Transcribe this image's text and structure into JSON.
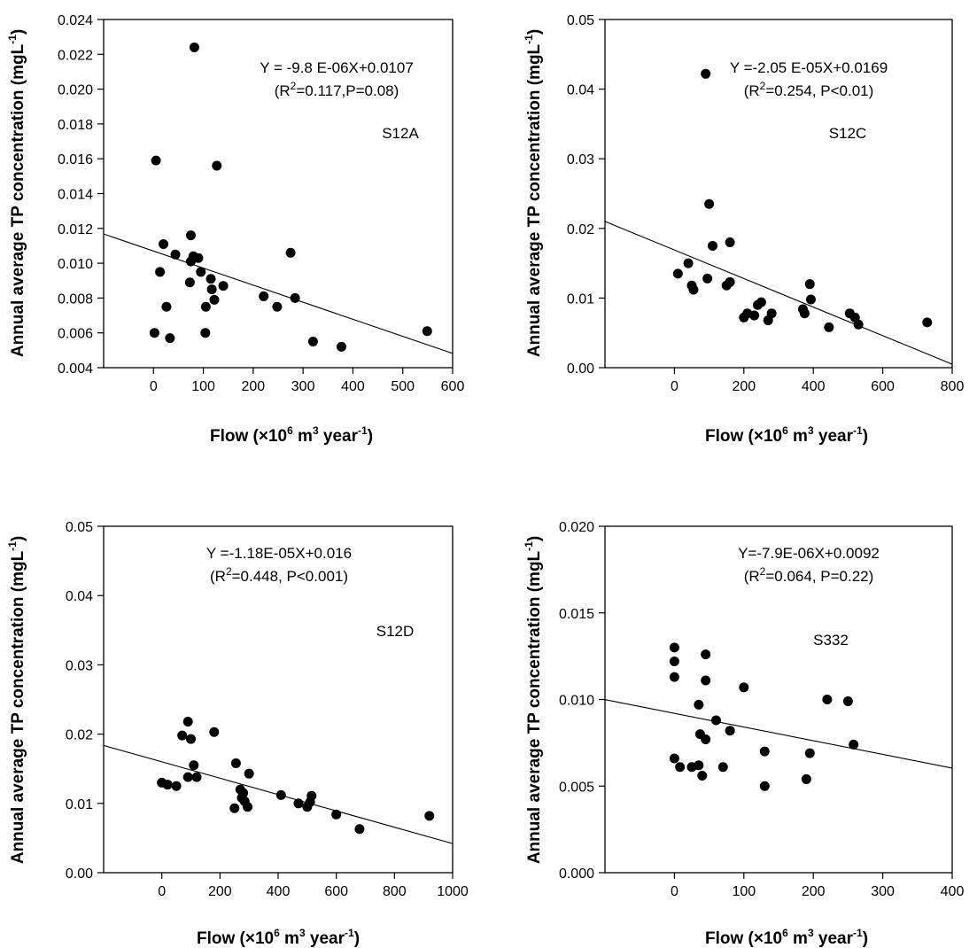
{
  "chart_data": [
    {
      "type": "scatter",
      "panel_label": "S12A",
      "equation": "Y = -9.8 E-06X+0.0107",
      "stats": {
        "prefix": "(R",
        "sup": "2",
        "suffix": "=0.117,P=0.08)"
      },
      "xlabel": {
        "prefix": "Flow (×10",
        "sup1": "6",
        "mid": " m",
        "sup2": "3",
        "mid2": " year",
        "sup3": "-1",
        "suffix": ")"
      },
      "ylabel": {
        "prefix": "Annual average TP concentration (mgL",
        "sup": "-1",
        "suffix": ")"
      },
      "xlim": [
        -100,
        600
      ],
      "ylim": [
        0.004,
        0.024
      ],
      "xticks": [
        "0",
        "100",
        "200",
        "300",
        "400",
        "500",
        "600"
      ],
      "yticks": [
        "0.004",
        "0.006",
        "0.008",
        "0.010",
        "0.012",
        "0.014",
        "0.016",
        "0.018",
        "0.020",
        "0.022",
        "0.024"
      ],
      "fit": {
        "slope": -9.8e-06,
        "intercept": 0.0107
      },
      "x": [
        82,
        5,
        127,
        20,
        13,
        75,
        44,
        95,
        90,
        75,
        115,
        80,
        105,
        117,
        140,
        122,
        73,
        221,
        248,
        26,
        104,
        33,
        2,
        275,
        284,
        320,
        377,
        549
      ],
      "y": [
        0.0224,
        0.0159,
        0.0156,
        0.0111,
        0.0095,
        0.0116,
        0.0105,
        0.0095,
        0.0103,
        0.0101,
        0.0091,
        0.0104,
        0.0075,
        0.0085,
        0.0087,
        0.0079,
        0.0089,
        0.0081,
        0.0075,
        0.0075,
        0.006,
        0.0057,
        0.006,
        0.0106,
        0.008,
        0.0055,
        0.0052,
        0.0061
      ]
    },
    {
      "type": "scatter",
      "panel_label": "S12C",
      "equation": "Y =-2.05 E-05X+0.0169",
      "stats": {
        "prefix": "(R",
        "sup": "2",
        "suffix": "=0.254, P<0.01)"
      },
      "xlabel": {
        "prefix": "Flow (×10",
        "sup1": "6",
        "mid": " m",
        "sup2": "3",
        "mid2": " year",
        "sup3": "-1",
        "suffix": ")"
      },
      "ylabel": {
        "prefix": "Annual average TP concentration (mgL",
        "sup": "-1",
        "suffix": ")"
      },
      "xlim": [
        -200,
        800
      ],
      "ylim": [
        0.0,
        0.05
      ],
      "xticks": [
        "0",
        "200",
        "400",
        "600",
        "800"
      ],
      "yticks": [
        "0.00",
        "0.01",
        "0.02",
        "0.03",
        "0.04",
        "0.05"
      ],
      "fit": {
        "slope": -2.05e-05,
        "intercept": 0.0169
      },
      "x": [
        90,
        100,
        110,
        160,
        95,
        40,
        10,
        50,
        55,
        150,
        160,
        200,
        210,
        230,
        240,
        250,
        270,
        280,
        370,
        375,
        390,
        393,
        445,
        505,
        520,
        530,
        728
      ],
      "y": [
        0.0422,
        0.0235,
        0.0175,
        0.018,
        0.0128,
        0.015,
        0.0135,
        0.0118,
        0.0112,
        0.0118,
        0.0123,
        0.0072,
        0.0078,
        0.0075,
        0.009,
        0.0094,
        0.0068,
        0.0078,
        0.0084,
        0.0078,
        0.012,
        0.0098,
        0.0058,
        0.0078,
        0.0072,
        0.0062,
        0.0065
      ]
    },
    {
      "type": "scatter",
      "panel_label": "S12D",
      "equation": "Y =-1.18E-05X+0.016",
      "stats": {
        "prefix": "(R",
        "sup": "2",
        "suffix": "=0.448, P<0.001)"
      },
      "xlabel": {
        "prefix": "Flow (×10",
        "sup1": "6",
        "mid": " m",
        "sup2": "3",
        "mid2": " year",
        "sup3": "-1",
        "suffix": ")"
      },
      "ylabel": {
        "prefix": "Annual average TP concentration (mgL",
        "sup": "-1",
        "suffix": ")"
      },
      "xlim": [
        -200,
        1000
      ],
      "ylim": [
        0.0,
        0.05
      ],
      "xticks": [
        "0",
        "200",
        "400",
        "600",
        "800",
        "1000"
      ],
      "yticks": [
        "0.00",
        "0.01",
        "0.02",
        "0.03",
        "0.04",
        "0.05"
      ],
      "fit": {
        "slope": -1.18e-05,
        "intercept": 0.016
      },
      "x": [
        90,
        70,
        100,
        180,
        110,
        0,
        20,
        50,
        90,
        120,
        255,
        270,
        280,
        275,
        285,
        295,
        300,
        250,
        410,
        470,
        500,
        510,
        515,
        600,
        680,
        920
      ],
      "y": [
        0.0218,
        0.0198,
        0.0193,
        0.0203,
        0.0155,
        0.013,
        0.0127,
        0.0125,
        0.0138,
        0.0138,
        0.0158,
        0.012,
        0.0115,
        0.0108,
        0.0103,
        0.0095,
        0.0143,
        0.0093,
        0.0112,
        0.01,
        0.0095,
        0.0102,
        0.0111,
        0.0084,
        0.0063,
        0.0082
      ]
    },
    {
      "type": "scatter",
      "panel_label": "S332",
      "equation": "Y=-7.9E-06X+0.0092",
      "stats": {
        "prefix": "(R",
        "sup": "2",
        "suffix": "=0.064, P=0.22)"
      },
      "xlabel": {
        "prefix": "Flow (×10",
        "sup1": "6",
        "mid": " m",
        "sup2": "3",
        "mid2": " year",
        "sup3": "-1",
        "suffix": ")"
      },
      "ylabel": {
        "prefix": "Annual average TP concentration (mgL",
        "sup": "-1",
        "suffix": ")"
      },
      "xlim": [
        -100,
        400
      ],
      "ylim": [
        0.0,
        0.02
      ],
      "xticks": [
        "0",
        "100",
        "200",
        "300",
        "400"
      ],
      "yticks": [
        "0.000",
        "0.005",
        "0.010",
        "0.015",
        "0.020"
      ],
      "fit": {
        "slope": -7.9e-06,
        "intercept": 0.0092
      },
      "x": [
        0,
        0,
        0,
        45,
        45,
        35,
        100,
        60,
        37,
        45,
        80,
        0,
        8,
        25,
        35,
        40,
        70,
        130,
        130,
        195,
        190,
        220,
        250,
        258
      ],
      "y": [
        0.013,
        0.0122,
        0.0113,
        0.0126,
        0.0111,
        0.0097,
        0.0107,
        0.0088,
        0.008,
        0.0077,
        0.0082,
        0.0066,
        0.0061,
        0.0061,
        0.0062,
        0.0056,
        0.0061,
        0.007,
        0.005,
        0.0069,
        0.0054,
        0.01,
        0.0099,
        0.0074
      ]
    }
  ]
}
